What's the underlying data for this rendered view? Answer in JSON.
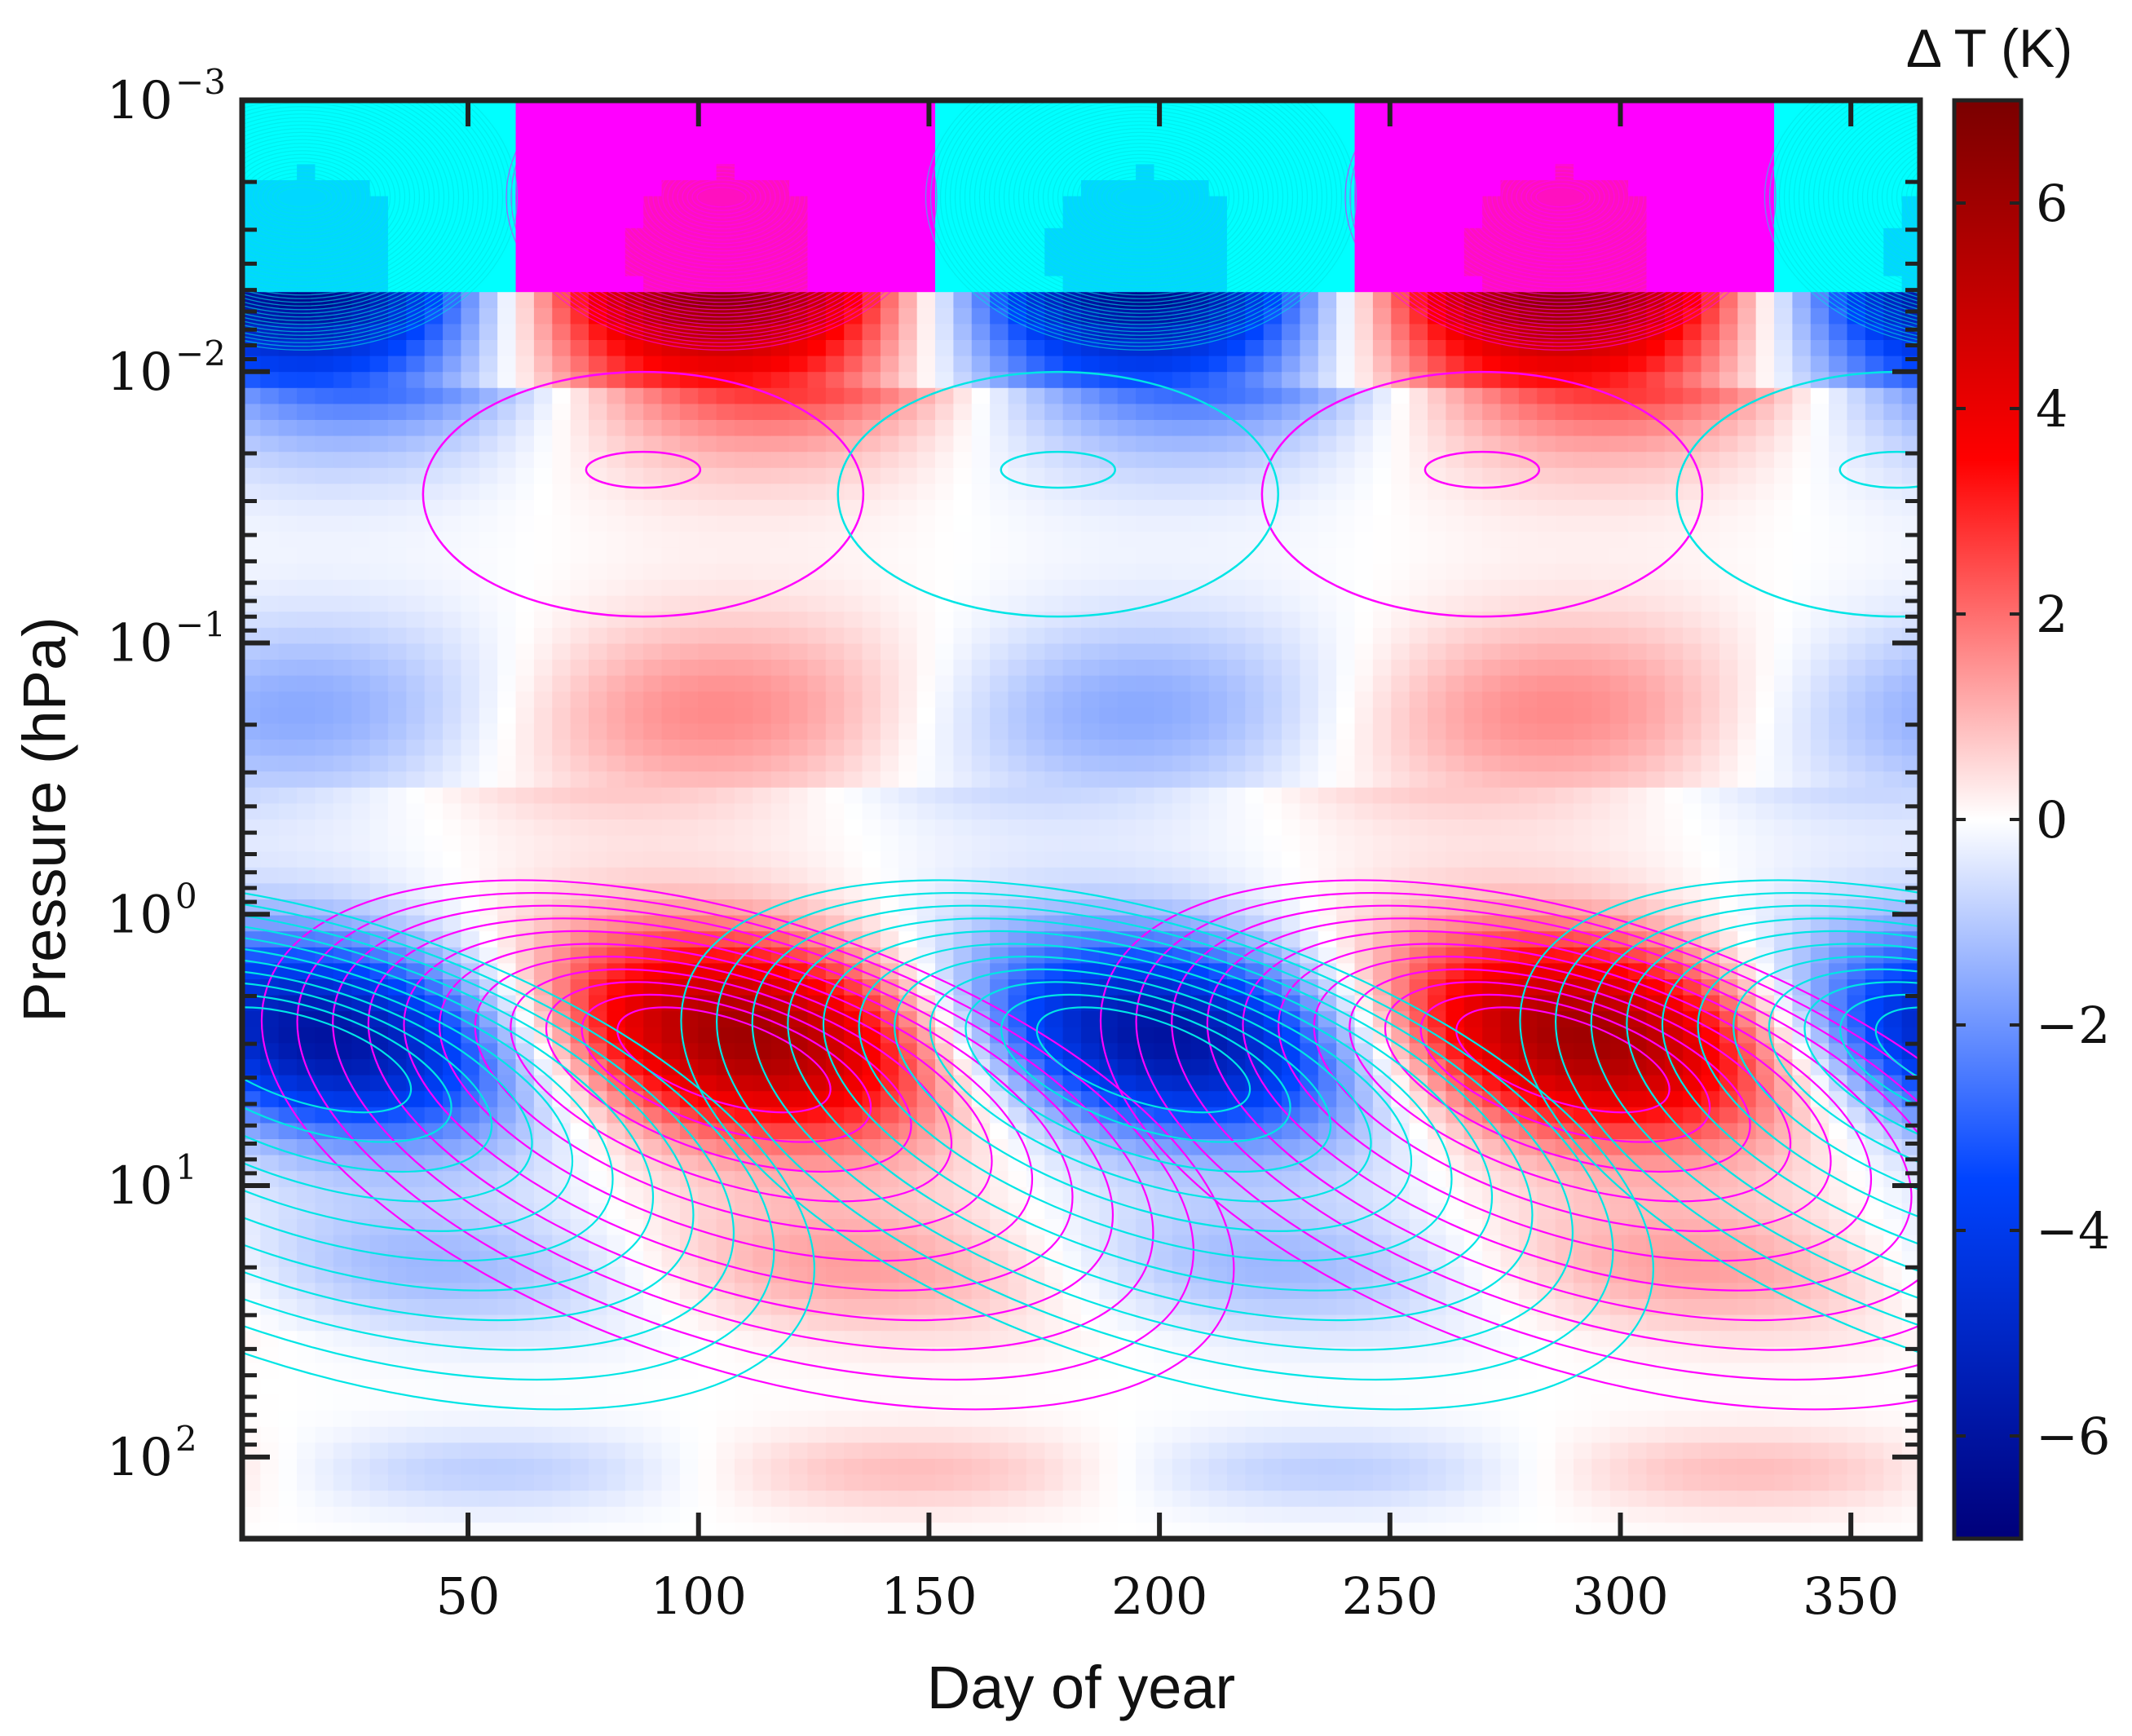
{
  "chart_data": {
    "type": "heatmap",
    "xlabel": "Day of year",
    "ylabel": "Pressure (hPa)",
    "colorbar_label": "Δ T (K)",
    "xlim": [
      1,
      365
    ],
    "ylim_hpa": [
      200,
      0.001
    ],
    "y_scale": "log",
    "y_inverted": true,
    "x_ticks": [
      50,
      100,
      150,
      200,
      250,
      300,
      350
    ],
    "y_ticks": [
      {
        "base": "10",
        "exp": "−3",
        "value": 0.001
      },
      {
        "base": "10",
        "exp": "−2",
        "value": 0.01
      },
      {
        "base": "10",
        "exp": "−1",
        "value": 0.1
      },
      {
        "base": "10",
        "exp": "0",
        "value": 1
      },
      {
        "base": "10",
        "exp": "1",
        "value": 10
      },
      {
        "base": "10",
        "exp": "2",
        "value": 100
      }
    ],
    "colorbar": {
      "range": [
        -7,
        7
      ],
      "ticks": [
        "6",
        "4",
        "2",
        "0",
        "−2",
        "−4",
        "−6"
      ],
      "tick_values": [
        6,
        4,
        2,
        0,
        -2,
        -4,
        -6
      ],
      "colormap": "blue-white-red",
      "colors": {
        "min": "#00007a",
        "neg": "#0044ff",
        "zero": "#ffffff",
        "pos": "#ff0000",
        "max": "#7a0000"
      }
    },
    "field_description": "Temperature anomaly oscillating with period ~182 days, phase descending with pressure",
    "oscillation_period_days": 182,
    "bands": [
      {
        "p_top": 0.001,
        "p_bottom": 0.005,
        "amp": 7.0,
        "phase_day": 105,
        "note": "saturated magenta/cyan contour region"
      },
      {
        "p_top": 0.005,
        "p_bottom": 0.01,
        "amp": 7.0,
        "phase_day": 110
      },
      {
        "p_top": 0.02,
        "p_bottom": 0.08,
        "amp": 7.0,
        "phase_day": 20
      },
      {
        "p_top": 0.15,
        "p_bottom": 0.6,
        "amp": 1.8,
        "phase_day": 20
      },
      {
        "p_top": 0.8,
        "p_bottom": 12,
        "amp": 5.5,
        "phase_day": 110
      },
      {
        "p_top": 40,
        "p_bottom": 200,
        "amp": 0.8,
        "phase_day": 55
      }
    ],
    "contours": {
      "positive_color": "#ff00ff",
      "negative_color": "#00e5e5"
    },
    "grid": false,
    "legend": "colorbar-right"
  }
}
